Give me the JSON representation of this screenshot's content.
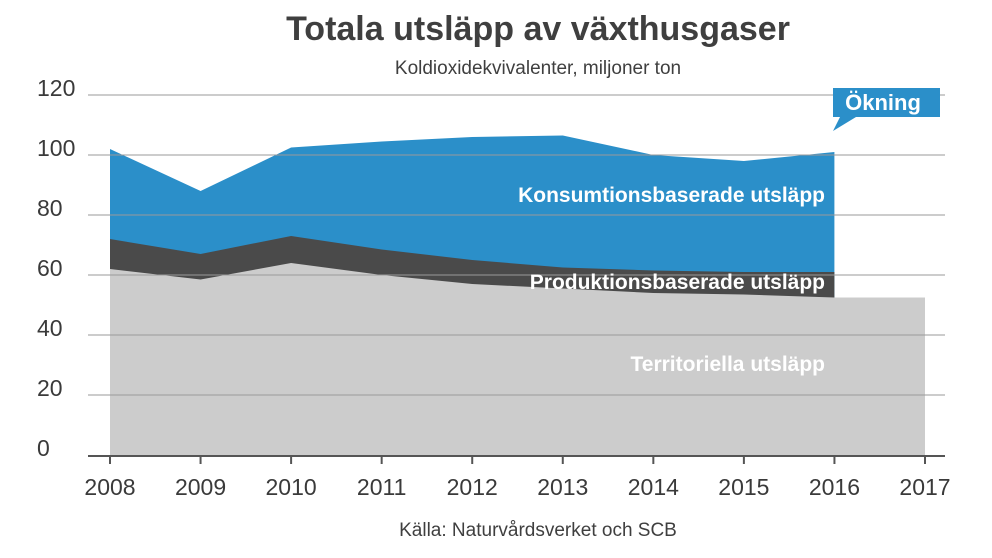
{
  "title": "Totala utsläpp av växthusgaser",
  "subtitle": "Koldioxidekvivalenter, miljoner ton",
  "source": "Källa: Naturvårdsverket och SCB",
  "callout": "Ökning",
  "colors": {
    "konsumtion": "#2b8fc9",
    "produktion": "#4a4a4a",
    "territoriell": "#cccccc",
    "grid": "#9a9a9a",
    "axis": "#555555"
  },
  "chart_data": {
    "type": "area",
    "x": [
      2008,
      2009,
      2010,
      2011,
      2012,
      2013,
      2014,
      2015,
      2016,
      2017
    ],
    "xlim": [
      2008,
      2017
    ],
    "ylim": [
      0,
      120
    ],
    "yticks": [
      0,
      20,
      40,
      60,
      80,
      100,
      120
    ],
    "grid": true,
    "title": "Totala utsläpp av växthusgaser",
    "subtitle": "Koldioxidekvivalenter, miljoner ton",
    "series": [
      {
        "name": "Konsumtionsbaserade utsläpp",
        "color": "#2b8fc9",
        "values": [
          102,
          88,
          102.5,
          104.5,
          106,
          106.5,
          100,
          98,
          101,
          null
        ]
      },
      {
        "name": "Produktionsbaserade utsläpp",
        "color": "#4a4a4a",
        "values": [
          72,
          67,
          73,
          68.5,
          65,
          62.5,
          61.5,
          61,
          61,
          null
        ]
      },
      {
        "name": "Territoriella utsläpp",
        "color": "#cccccc",
        "values": [
          62,
          58.5,
          64,
          60,
          57,
          55.5,
          54,
          53.5,
          52.5,
          52.5
        ]
      }
    ],
    "annotations": [
      "Ökning"
    ]
  }
}
